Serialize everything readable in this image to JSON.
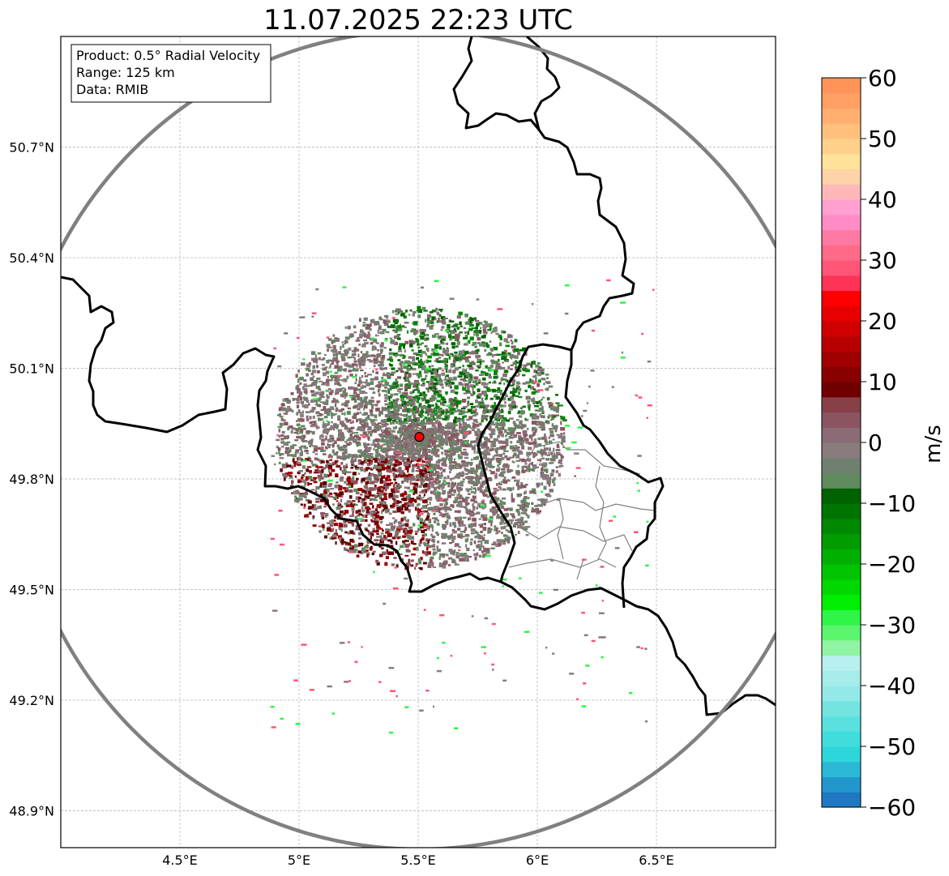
{
  "title": "11.07.2025 22:23 UTC",
  "info_box": {
    "product": "Product: 0.5° Radial Velocity",
    "range": "Range: 125 km",
    "data_source": "Data: RMIB"
  },
  "map": {
    "lon_range": [
      4.0,
      7.0
    ],
    "lat_range": [
      48.8,
      51.0
    ],
    "x_ticks": [
      {
        "value": 4.5,
        "label": "4.5°E"
      },
      {
        "value": 5.0,
        "label": "5°E"
      },
      {
        "value": 5.5,
        "label": "5.5°E"
      },
      {
        "value": 6.0,
        "label": "6°E"
      },
      {
        "value": 6.5,
        "label": "6.5°E"
      }
    ],
    "y_ticks": [
      {
        "value": 50.7,
        "label": "50.7°N"
      },
      {
        "value": 50.4,
        "label": "50.4°N"
      },
      {
        "value": 50.1,
        "label": "50.1°N"
      },
      {
        "value": 49.8,
        "label": "49.8°N"
      },
      {
        "value": 49.5,
        "label": "49.5°N"
      },
      {
        "value": 49.2,
        "label": "49.2°N"
      },
      {
        "value": 48.9,
        "label": "48.9°N"
      }
    ],
    "radar_site": {
      "lon": 5.505,
      "lat": 49.914,
      "color": "#ff0000"
    },
    "range_ring_color": "#808080",
    "border_color": "#000000"
  },
  "colorbar": {
    "label": "m/s",
    "min": -60,
    "max": 60,
    "ticks": [
      {
        "value": 60,
        "label": "60"
      },
      {
        "value": 50,
        "label": "50"
      },
      {
        "value": 40,
        "label": "40"
      },
      {
        "value": 30,
        "label": "30"
      },
      {
        "value": 20,
        "label": "20"
      },
      {
        "value": 10,
        "label": "10"
      },
      {
        "value": 0,
        "label": "0"
      },
      {
        "value": -10,
        "label": "−10"
      },
      {
        "value": -20,
        "label": "−20"
      },
      {
        "value": -30,
        "label": "−30"
      },
      {
        "value": -40,
        "label": "−40"
      },
      {
        "value": -50,
        "label": "−50"
      },
      {
        "value": -60,
        "label": "−60"
      }
    ],
    "colors": [
      "#1f78c1",
      "#2297cc",
      "#2bb8d5",
      "#2dd6da",
      "#3fdedd",
      "#58e1df",
      "#74e4e1",
      "#92e9e8",
      "#a5eceb",
      "#b8f0ef",
      "#8ff5a3",
      "#5cf56e",
      "#2ef546",
      "#00ee00",
      "#00d800",
      "#00c400",
      "#00b000",
      "#009c00",
      "#008800",
      "#007400",
      "#006200",
      "#5e8a5e",
      "#6f8070",
      "#8a7c7c",
      "#8a6b76",
      "#8a5560",
      "#884048",
      "#700000",
      "#880000",
      "#a00000",
      "#b80000",
      "#d00000",
      "#e80000",
      "#ff0000",
      "#ff3355",
      "#ff5577",
      "#ff6a88",
      "#ff7aa3",
      "#ff8cc4",
      "#ffa0d0",
      "#ffb8b8",
      "#ffd3a8",
      "#ffe39a",
      "#ffd08a",
      "#ffc07e",
      "#ffb070",
      "#ffa064",
      "#ff9458"
    ]
  }
}
